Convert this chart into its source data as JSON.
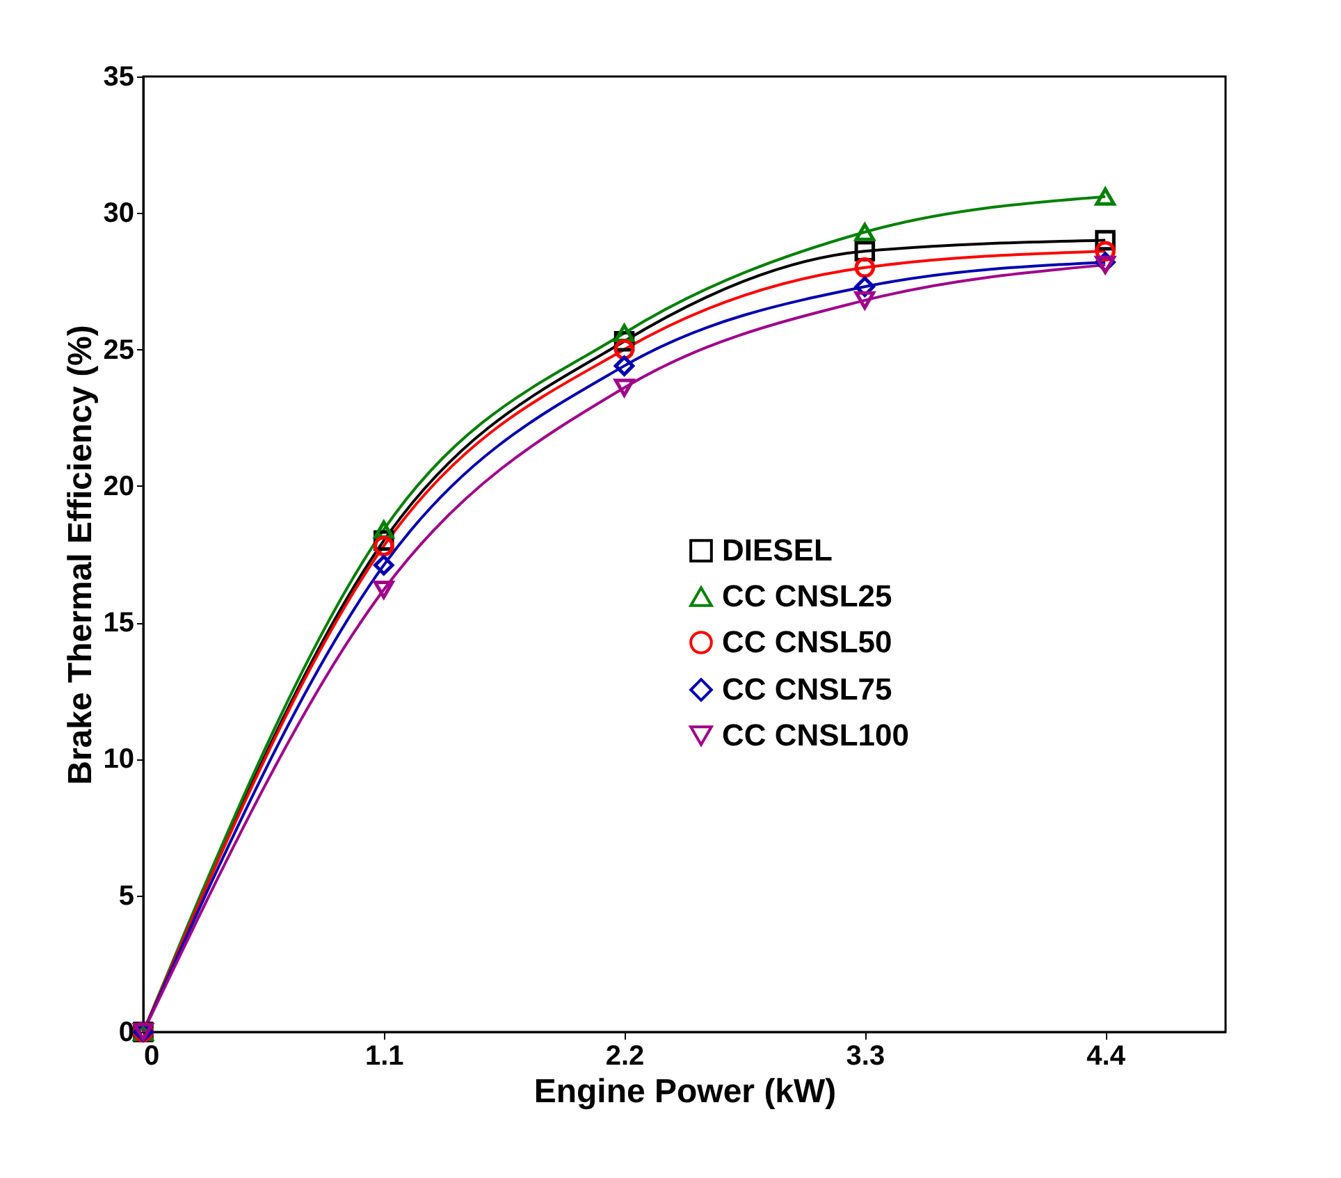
{
  "chart_data": {
    "type": "line",
    "xlabel": "Engine Power (kW)",
    "ylabel": "Brake Thermal Efficiency (%)",
    "x": [
      0,
      1.1,
      2.2,
      3.3,
      4.4
    ],
    "series": [
      {
        "name": "DIESEL",
        "color": "#000000",
        "marker": "square",
        "values": [
          0,
          18.0,
          25.3,
          28.6,
          29.0
        ]
      },
      {
        "name": "CC CNSL25",
        "color": "#008000",
        "marker": "triangle",
        "values": [
          0,
          18.4,
          25.6,
          29.3,
          30.6
        ]
      },
      {
        "name": "CC CNSL50",
        "color": "#ff0000",
        "marker": "circle",
        "values": [
          0,
          17.8,
          25.0,
          28.0,
          28.6
        ]
      },
      {
        "name": "CC CNSL75",
        "color": "#0000b0",
        "marker": "diamond",
        "values": [
          0,
          17.1,
          24.4,
          27.3,
          28.2
        ]
      },
      {
        "name": "CC CNSL100",
        "color": "#a0008a",
        "marker": "triangle-down",
        "values": [
          0,
          16.2,
          23.6,
          26.8,
          28.1
        ]
      }
    ],
    "xlim": [
      0,
      4.95
    ],
    "xticks": [
      {
        "value": 0,
        "label": "0"
      },
      1.1,
      2.2,
      3.3,
      4.4
    ],
    "ylim": [
      0,
      35
    ],
    "yticks": [
      0,
      5,
      10,
      15,
      20,
      25,
      30,
      35
    ],
    "grid": false,
    "legend": "right",
    "line_style": "solid"
  }
}
